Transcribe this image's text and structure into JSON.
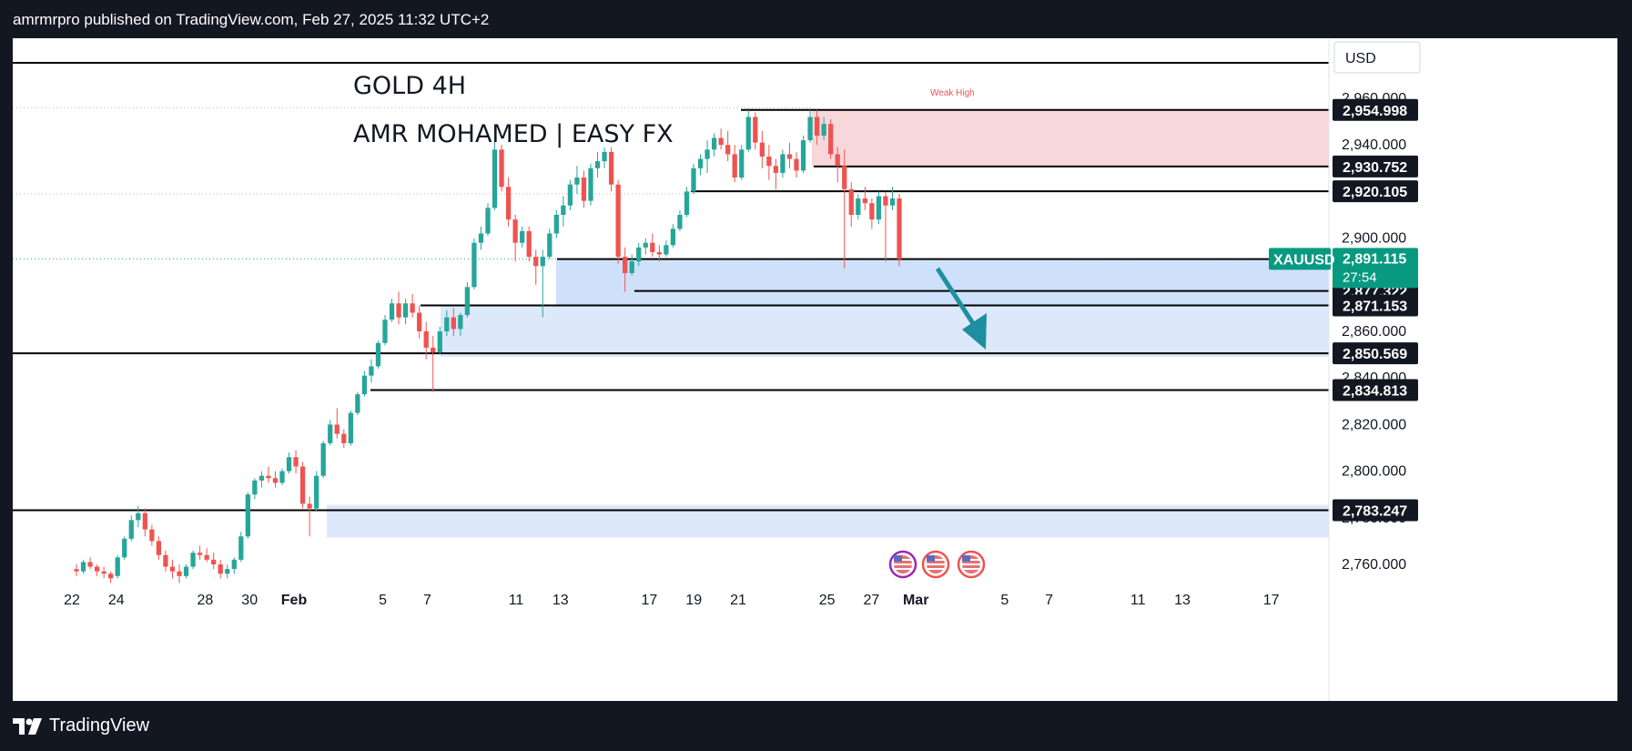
{
  "header": {
    "publish_text": "amrmrpro published on TradingView.com, Feb 27, 2025 11:32 UTC+2"
  },
  "footer": {
    "brand": "TradingView"
  },
  "chart_data": {
    "type": "candlestick",
    "title": "GOLD 4H",
    "subtitle": "AMR MOHAMED | EASY FX",
    "symbol": "XAUUSD",
    "currency": "USD",
    "last_price": "2,891.115",
    "countdown": "27:54",
    "ylim": [
      2756,
      2972
    ],
    "y_ticks": [
      "2,960.000",
      "2,940.000",
      "2,920.000",
      "2,900.000",
      "2,880.000",
      "2,860.000",
      "2,840.000",
      "2,820.000",
      "2,800.000",
      "2,780.000",
      "2,760.000"
    ],
    "x_ticks": [
      {
        "label": "22",
        "day": 0
      },
      {
        "label": "24",
        "day": 2
      },
      {
        "label": "28",
        "day": 6
      },
      {
        "label": "30",
        "day": 8
      },
      {
        "label": "Feb",
        "day": 10
      },
      {
        "label": "5",
        "day": 14
      },
      {
        "label": "7",
        "day": 16
      },
      {
        "label": "11",
        "day": 20
      },
      {
        "label": "13",
        "day": 22
      },
      {
        "label": "17",
        "day": 26
      },
      {
        "label": "19",
        "day": 28
      },
      {
        "label": "21",
        "day": 30
      },
      {
        "label": "25",
        "day": 34
      },
      {
        "label": "27",
        "day": 36
      },
      {
        "label": "Mar",
        "day": 38
      },
      {
        "label": "5",
        "day": 42
      },
      {
        "label": "7",
        "day": 44
      },
      {
        "label": "11",
        "day": 48
      },
      {
        "label": "13",
        "day": 50
      },
      {
        "label": "17",
        "day": 54
      }
    ],
    "annotation": "Weak High",
    "levels": [
      {
        "value": 2954.998,
        "label": "2,954.998"
      },
      {
        "value": 2930.752,
        "label": "2,930.752"
      },
      {
        "value": 2920.105,
        "label": "2,920.105"
      },
      {
        "value": 2877.322,
        "label": "2,877.322"
      },
      {
        "value": 2871.153,
        "label": "2,871.153"
      },
      {
        "value": 2850.569,
        "label": "2,850.569"
      },
      {
        "value": 2834.813,
        "label": "2,834.813"
      },
      {
        "value": 2783.247,
        "label": "2,783.247"
      }
    ],
    "zones": [
      {
        "name": "supply",
        "y1": 2930.7,
        "y2": 2955.0,
        "color": "#f8d7da"
      },
      {
        "name": "demand-1",
        "y1": 2864.5,
        "y2": 2890.5,
        "color": "#cfe0fb"
      },
      {
        "name": "demand-2",
        "y1": 2849.0,
        "y2": 2871.0,
        "color": "#dde8fb"
      },
      {
        "name": "demand-3",
        "y1": 2771.5,
        "y2": 2785.5,
        "color": "#dde8fb"
      }
    ],
    "candles": [
      [
        2758,
        2760,
        2755,
        2757
      ],
      [
        2757,
        2762,
        2756,
        2761
      ],
      [
        2761,
        2763,
        2758,
        2759
      ],
      [
        2759,
        2760,
        2755,
        2757
      ],
      [
        2757,
        2759,
        2754,
        2756
      ],
      [
        2756,
        2757,
        2752,
        2754
      ],
      [
        2755,
        2764,
        2754,
        2763
      ],
      [
        2763,
        2772,
        2762,
        2771
      ],
      [
        2771,
        2781,
        2770,
        2779
      ],
      [
        2779,
        2785,
        2776,
        2782
      ],
      [
        2782,
        2784,
        2772,
        2775
      ],
      [
        2775,
        2777,
        2768,
        2770
      ],
      [
        2770,
        2772,
        2762,
        2764
      ],
      [
        2764,
        2766,
        2757,
        2759
      ],
      [
        2759,
        2762,
        2754,
        2757
      ],
      [
        2757,
        2760,
        2752,
        2755
      ],
      [
        2755,
        2760,
        2754,
        2759
      ],
      [
        2759,
        2766,
        2758,
        2765
      ],
      [
        2765,
        2768,
        2762,
        2764
      ],
      [
        2764,
        2767,
        2761,
        2762
      ],
      [
        2762,
        2765,
        2758,
        2760
      ],
      [
        2760,
        2762,
        2754,
        2756
      ],
      [
        2756,
        2760,
        2754,
        2758
      ],
      [
        2758,
        2763,
        2756,
        2762
      ],
      [
        2762,
        2774,
        2761,
        2772
      ],
      [
        2772,
        2791,
        2771,
        2790
      ],
      [
        2790,
        2797,
        2788,
        2796
      ],
      [
        2796,
        2800,
        2793,
        2798
      ],
      [
        2798,
        2802,
        2795,
        2797
      ],
      [
        2797,
        2800,
        2793,
        2795
      ],
      [
        2795,
        2801,
        2794,
        2800
      ],
      [
        2800,
        2808,
        2799,
        2806
      ],
      [
        2806,
        2809,
        2799,
        2802
      ],
      [
        2802,
        2804,
        2784,
        2786
      ],
      [
        2786,
        2789,
        2772,
        2784
      ],
      [
        2784,
        2800,
        2783,
        2798
      ],
      [
        2798,
        2813,
        2797,
        2812
      ],
      [
        2812,
        2822,
        2811,
        2820
      ],
      [
        2820,
        2827,
        2814,
        2816
      ],
      [
        2816,
        2818,
        2810,
        2812
      ],
      [
        2812,
        2826,
        2811,
        2825
      ],
      [
        2825,
        2834,
        2824,
        2833
      ],
      [
        2833,
        2843,
        2832,
        2841
      ],
      [
        2841,
        2848,
        2838,
        2845
      ],
      [
        2845,
        2856,
        2844,
        2855
      ],
      [
        2855,
        2867,
        2854,
        2865
      ],
      [
        2865,
        2874,
        2864,
        2872
      ],
      [
        2872,
        2877,
        2863,
        2866
      ],
      [
        2866,
        2874,
        2863,
        2872
      ],
      [
        2872,
        2876,
        2866,
        2868
      ],
      [
        2868,
        2871,
        2857,
        2860
      ],
      [
        2860,
        2864,
        2848,
        2853
      ],
      [
        2853,
        2858,
        2834,
        2851
      ],
      [
        2851,
        2862,
        2850,
        2860
      ],
      [
        2860,
        2869,
        2858,
        2866
      ],
      [
        2866,
        2870,
        2858,
        2861
      ],
      [
        2861,
        2868,
        2858,
        2867
      ],
      [
        2867,
        2881,
        2866,
        2879
      ],
      [
        2879,
        2900,
        2878,
        2898
      ],
      [
        2898,
        2905,
        2895,
        2902
      ],
      [
        2902,
        2915,
        2901,
        2913
      ],
      [
        2913,
        2942,
        2912,
        2938
      ],
      [
        2938,
        2940,
        2920,
        2922
      ],
      [
        2922,
        2926,
        2905,
        2908
      ],
      [
        2908,
        2910,
        2890,
        2898
      ],
      [
        2898,
        2905,
        2896,
        2903
      ],
      [
        2903,
        2905,
        2890,
        2892
      ],
      [
        2892,
        2895,
        2880,
        2888
      ],
      [
        2888,
        2895,
        2866,
        2892
      ],
      [
        2892,
        2904,
        2891,
        2902
      ],
      [
        2902,
        2912,
        2900,
        2910
      ],
      [
        2910,
        2918,
        2905,
        2914
      ],
      [
        2914,
        2925,
        2912,
        2923
      ],
      [
        2923,
        2931,
        2919,
        2926
      ],
      [
        2926,
        2929,
        2913,
        2916
      ],
      [
        2916,
        2932,
        2914,
        2930
      ],
      [
        2930,
        2937,
        2926,
        2933
      ],
      [
        2933,
        2939,
        2930,
        2937
      ],
      [
        2937,
        2939,
        2920,
        2923
      ],
      [
        2923,
        2925,
        2889,
        2892
      ],
      [
        2892,
        2896,
        2877,
        2885
      ],
      [
        2885,
        2893,
        2884,
        2890
      ],
      [
        2890,
        2898,
        2888,
        2896
      ],
      [
        2896,
        2900,
        2893,
        2898
      ],
      [
        2898,
        2902,
        2892,
        2894
      ],
      [
        2894,
        2897,
        2890,
        2893
      ],
      [
        2893,
        2899,
        2892,
        2897
      ],
      [
        2897,
        2906,
        2896,
        2904
      ],
      [
        2904,
        2912,
        2903,
        2910
      ],
      [
        2910,
        2922,
        2909,
        2920
      ],
      [
        2920,
        2932,
        2919,
        2930
      ],
      [
        2930,
        2936,
        2927,
        2934
      ],
      [
        2934,
        2942,
        2928,
        2938
      ],
      [
        2938,
        2945,
        2935,
        2943
      ],
      [
        2943,
        2947,
        2938,
        2940
      ],
      [
        2940,
        2946,
        2933,
        2936
      ],
      [
        2936,
        2940,
        2924,
        2926
      ],
      [
        2926,
        2940,
        2925,
        2938
      ],
      [
        2938,
        2955,
        2937,
        2952
      ],
      [
        2952,
        2954,
        2938,
        2941
      ],
      [
        2941,
        2946,
        2930,
        2935
      ],
      [
        2935,
        2940,
        2925,
        2931
      ],
      [
        2931,
        2934,
        2921,
        2928
      ],
      [
        2928,
        2938,
        2926,
        2936
      ],
      [
        2936,
        2941,
        2930,
        2934
      ],
      [
        2934,
        2937,
        2926,
        2929
      ],
      [
        2929,
        2944,
        2928,
        2942
      ],
      [
        2942,
        2955,
        2941,
        2952
      ],
      [
        2952,
        2955,
        2940,
        2944
      ],
      [
        2944,
        2952,
        2942,
        2949
      ],
      [
        2949,
        2951,
        2934,
        2936
      ],
      [
        2936,
        2939,
        2924,
        2931
      ],
      [
        2931,
        2938,
        2887,
        2921
      ],
      [
        2921,
        2924,
        2905,
        2910
      ],
      [
        2910,
        2919,
        2908,
        2917
      ],
      [
        2917,
        2922,
        2912,
        2915
      ],
      [
        2915,
        2917,
        2904,
        2908
      ],
      [
        2908,
        2920,
        2906,
        2918
      ],
      [
        2918,
        2920,
        2890,
        2914
      ],
      [
        2914,
        2922,
        2912,
        2917
      ],
      [
        2917,
        2919,
        2888,
        2891
      ]
    ]
  }
}
